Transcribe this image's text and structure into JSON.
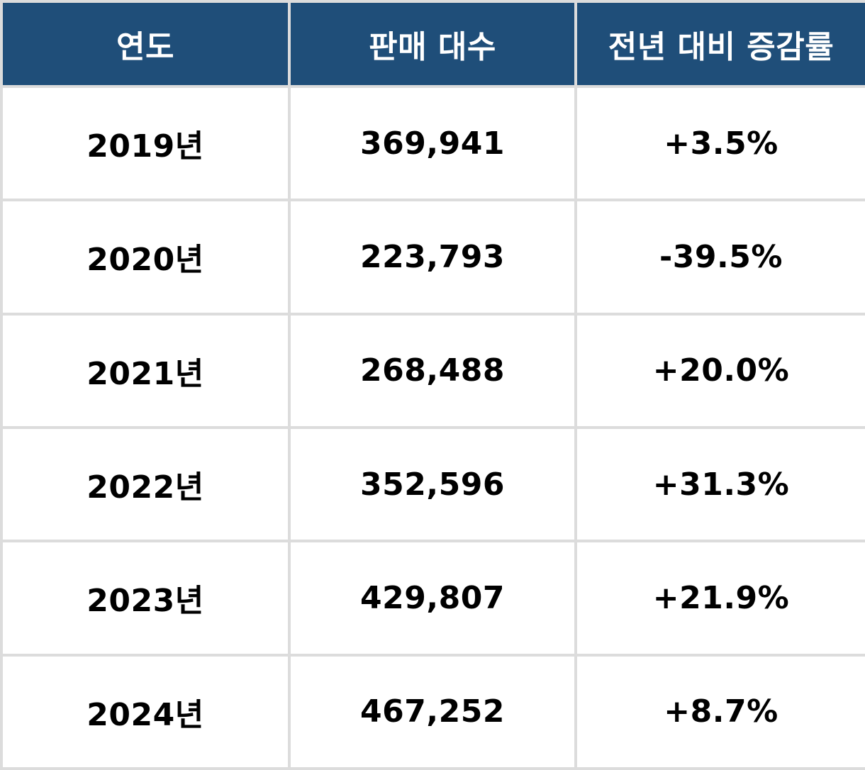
{
  "chart_data": {
    "type": "table",
    "columns": [
      "연도",
      "판매 대수",
      "전년 대비 증감률"
    ],
    "rows": [
      [
        "2019년",
        "369,941",
        "+3.5%"
      ],
      [
        "2020년",
        "223,793",
        "-39.5%"
      ],
      [
        "2021년",
        "268,488",
        "+20.0%"
      ],
      [
        "2022년",
        "352,596",
        "+31.3%"
      ],
      [
        "2023년",
        "429,807",
        "+21.9%"
      ],
      [
        "2024년",
        "467,252",
        "+8.7%"
      ]
    ],
    "header_color": "#1f4e79",
    "header_text_color": "#ffffff",
    "border_color": "#dcdcdc"
  }
}
